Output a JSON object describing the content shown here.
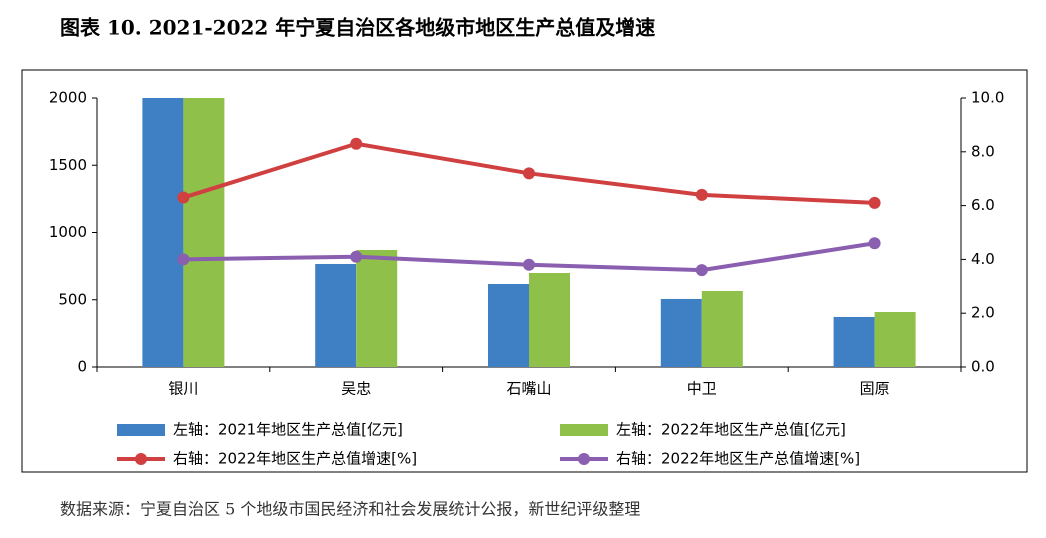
{
  "chart_data": {
    "type": "bar",
    "title": "图表 10. 2021-2022 年宁夏自治区各地级市地区生产总值及增速",
    "source": "数据来源：宁夏自治区 5 个地级市国民经济和社会发展统计公报，新世纪评级整理",
    "categories": [
      "银川",
      "吴忠",
      "石嘴山",
      "中卫",
      "固原"
    ],
    "series": [
      {
        "name": "左轴：2021年地区生产总值[亿元]",
        "type": "bar",
        "color": "#3f7fc4",
        "values": [
          2000,
          766,
          617,
          506,
          372
        ]
      },
      {
        "name": "左轴：2022年地区生产总值[亿元]",
        "type": "bar",
        "color": "#8fc04a",
        "values": [
          2000,
          870,
          699,
          565,
          409
        ]
      },
      {
        "name": "右轴：2022年地区生产总值增速[%]",
        "type": "line",
        "axis": "y2",
        "color": "#d04040",
        "values": [
          6.3,
          8.3,
          7.2,
          6.4,
          6.1
        ]
      },
      {
        "name": "右轴：2022年地区生产总值增速[%]",
        "type": "line",
        "axis": "y2",
        "color": "#8a5fb0",
        "values": [
          4.0,
          4.1,
          3.8,
          3.6,
          4.6
        ]
      }
    ],
    "ylim": [
      0,
      2000
    ],
    "yticks": [
      0,
      500,
      1000,
      1500,
      2000
    ],
    "y2lim": [
      0,
      10
    ],
    "y2ticks": [
      {
        "value": 0,
        "label": "0.0"
      },
      {
        "value": 2,
        "label": "2.0"
      },
      {
        "value": 4,
        "label": "4.0"
      },
      {
        "value": 6,
        "label": "6.0"
      },
      {
        "value": 8,
        "label": "8.0"
      },
      {
        "value": 10,
        "label": "10.0"
      }
    ],
    "grid": false
  }
}
